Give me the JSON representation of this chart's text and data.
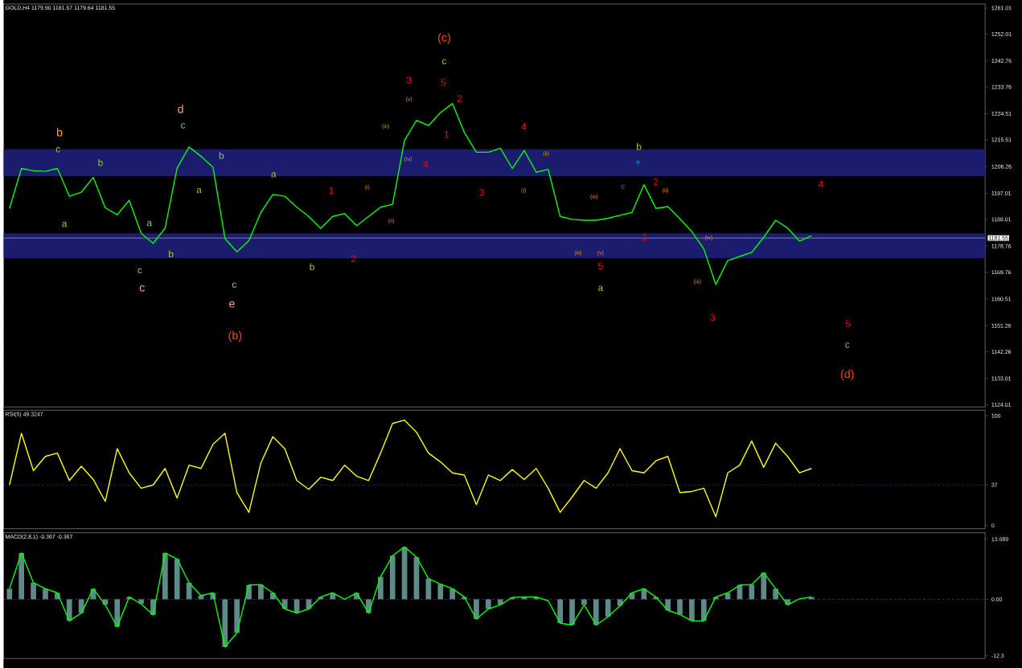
{
  "chart_data": [
    {
      "type": "line",
      "title": "GOLD,H4 1179.90 1181.57 1179.64 1181.55",
      "tick_labels": "y",
      "categories": [
        null,
        null,
        null,
        null,
        null,
        null,
        null,
        null,
        null,
        null,
        null,
        null,
        null,
        null,
        null,
        null,
        null,
        null,
        null,
        null,
        null,
        null,
        null,
        null,
        null,
        null,
        null,
        null,
        null,
        null,
        null,
        null,
        null,
        null,
        null,
        null,
        null,
        null,
        null,
        null,
        null,
        null,
        null,
        null,
        null,
        null,
        null,
        null,
        null,
        null,
        null,
        null,
        null,
        null,
        null,
        null,
        null,
        null,
        null,
        null,
        null,
        null,
        null,
        null,
        null,
        null,
        null,
        null,
        null,
        null,
        null,
        null,
        null,
        null,
        null,
        null,
        null,
        null,
        null,
        null,
        null,
        null
      ],
      "ylim": [
        1123.2,
        1262.4
      ],
      "yticks": [
        1124.01,
        1133.01,
        1142.26,
        1151.26,
        1160.51,
        1169.76,
        1178.76,
        1188.01,
        1197.01,
        1206.26,
        1215.51,
        1224.51,
        1233.76,
        1242.76,
        1252.01,
        1261.01
      ],
      "bands": [
        {
          "axis": "y",
          "from": 1202.9,
          "to": 1212.3,
          "color": "#1c1c6e"
        },
        {
          "axis": "y",
          "from": 1174.6,
          "to": 1183.2,
          "color": "#1c1c6e"
        }
      ],
      "ref_lines": [
        {
          "axis": "y",
          "value": 1181.55,
          "label": "1181.55",
          "color": "#c0c0c0"
        }
      ],
      "series": [
        {
          "color": "#00ff00",
          "values": [
            1191.8,
            1205.6,
            1204.8,
            1204.6,
            1205.6,
            1196,
            1197.4,
            1202.5,
            1192,
            1189.6,
            1194.6,
            1183.2,
            1179.7,
            1185,
            1205.7,
            1213,
            1209.8,
            1206,
            1181.4,
            1176.8,
            1180.7,
            1190.4,
            1196.6,
            1196,
            1192.2,
            1189,
            1184.9,
            1189,
            1190,
            1185.8,
            1189,
            1192.2,
            1193.2,
            1215.3,
            1222.2,
            1220.4,
            1224.9,
            1228,
            1218,
            1211.2,
            1211.2,
            1212.6,
            1205.6,
            1211.8,
            1204.3,
            1205.3,
            1189,
            1188,
            1187.7,
            1187.7,
            1188.4,
            1189.4,
            1190.4,
            1200,
            1191.8,
            1192.4,
            1188.2,
            1183.8,
            1177.8,
            1165.5,
            1173.8,
            1175.2,
            1176.6,
            1181.8,
            1187.7,
            1185,
            1180.5,
            1182.4,
            null,
            null,
            null,
            null,
            null,
            null,
            null,
            null,
            null,
            null,
            null,
            null,
            null,
            null
          ]
        }
      ],
      "annotations": [
        "(c)",
        "c",
        "3",
        "5",
        "2",
        "1",
        "4",
        "4",
        "3",
        "2",
        "1",
        "(b)",
        "e",
        "c",
        "c",
        "c",
        "d",
        "c",
        "b",
        "c",
        "b",
        "a",
        "a",
        "b",
        "b",
        "a",
        "a",
        "b",
        "(i)",
        "(ii)",
        "(iii)",
        "(iv)",
        "(v)",
        "5",
        "a",
        "b",
        "e",
        "c",
        "2",
        "1",
        "3",
        "4",
        "5",
        "c",
        "(d)",
        "(iii)",
        "(v)",
        "(iv)",
        "(ii)",
        "(i)",
        "(iii)",
        "(iv)",
        "(ii)"
      ]
    },
    {
      "type": "line",
      "title": "RSI(5) 49.3247",
      "tick_labels": "y",
      "categories": [
        null,
        null,
        null,
        null,
        null,
        null,
        null,
        null,
        null,
        null,
        null,
        null,
        null,
        null,
        null,
        null,
        null,
        null,
        null,
        null,
        null,
        null,
        null,
        null,
        null,
        null,
        null,
        null,
        null,
        null,
        null,
        null,
        null,
        null,
        null,
        null,
        null,
        null,
        null,
        null,
        null,
        null,
        null,
        null,
        null,
        null,
        null,
        null,
        null,
        null,
        null,
        null,
        null,
        null,
        null,
        null,
        null,
        null,
        null,
        null,
        null,
        null,
        null,
        null,
        null,
        null,
        null,
        null,
        null,
        null,
        null,
        null,
        null,
        null,
        null,
        null,
        null,
        null,
        null,
        null,
        null,
        null
      ],
      "ylim": [
        -2.9,
        105.1
      ],
      "yticks": [
        0,
        37,
        100
      ],
      "ref_lines": [
        {
          "axis": "y",
          "value": 37,
          "color": "#4040ff",
          "line_style": "dashed"
        }
      ],
      "series": [
        {
          "color": "#ffff00",
          "values": [
            37,
            84,
            50,
            63,
            66,
            41,
            54,
            42,
            22,
            70,
            48,
            34,
            37,
            52,
            25,
            55,
            52,
            74,
            84,
            30,
            12,
            57,
            81,
            70,
            41,
            33,
            44,
            41,
            55,
            45,
            41,
            66,
            93,
            96,
            85,
            66,
            58,
            48,
            46,
            19,
            46,
            41,
            51,
            42,
            52,
            34,
            12,
            26,
            41,
            34,
            48,
            70,
            50,
            48,
            59,
            63,
            30,
            31,
            34,
            8,
            48,
            55,
            77,
            53,
            75,
            63,
            48,
            52,
            null,
            null,
            null,
            null,
            null,
            null,
            null,
            null,
            null,
            null,
            null,
            null,
            null,
            null
          ]
        }
      ]
    },
    {
      "type": "line",
      "title": "MACD(2,8,1) -0.367 -0.367",
      "tick_labels": "y",
      "categories": [
        null,
        null,
        null,
        null,
        null,
        null,
        null,
        null,
        null,
        null,
        null,
        null,
        null,
        null,
        null,
        null,
        null,
        null,
        null,
        null,
        null,
        null,
        null,
        null,
        null,
        null,
        null,
        null,
        null,
        null,
        null,
        null,
        null,
        null,
        null,
        null,
        null,
        null,
        null,
        null,
        null,
        null,
        null,
        null,
        null,
        null,
        null,
        null,
        null,
        null,
        null,
        null,
        null,
        null,
        null,
        null,
        null,
        null,
        null,
        null,
        null,
        null,
        null,
        null,
        null,
        null,
        null,
        null,
        null,
        null,
        null,
        null,
        null,
        null,
        null,
        null,
        null,
        null,
        null,
        null,
        null,
        null
      ],
      "ylim": [
        -12.9,
        14.5
      ],
      "yticks": [
        13.089,
        {
          "value": 0,
          "label": "0.00"
        },
        -12.3
      ],
      "ref_lines": [
        {
          "axis": "y",
          "value": 0,
          "color": "#c000c0",
          "line_style": "dashed"
        }
      ],
      "series": [
        {
          "type": "bar",
          "color": "#5f8a8a",
          "values": [
            2.3,
            10.1,
            3.6,
            2.3,
            1.4,
            -4.7,
            -3.0,
            2.3,
            -1.2,
            -6,
            0.5,
            -1.0,
            -3.4,
            10.1,
            8.8,
            3.6,
            0.8,
            1.4,
            -10.4,
            -7.3,
            3.1,
            3.2,
            1.4,
            -2.1,
            -3.0,
            -2.1,
            0.5,
            1.4,
            0.0,
            1.4,
            -3.0,
            4.9,
            9.5,
            11.4,
            9.2,
            4.5,
            3.3,
            2.3,
            0.5,
            -4.3,
            -2.1,
            -1.2,
            0.4,
            0.5,
            0.5,
            null,
            -5.2,
            -5.6,
            -1.2,
            -5.6,
            -3.8,
            -1.4,
            1.4,
            2.3,
            0.5,
            -2.4,
            -3.3,
            -4.7,
            -4.7,
            0.5,
            1.4,
            3.1,
            3.2,
            5.8,
            2.3,
            -1.2,
            null,
            0.5,
            null,
            null,
            null,
            null,
            null,
            null,
            null,
            null,
            null,
            null,
            null,
            null,
            null,
            null
          ]
        },
        {
          "type": "line",
          "color": "#00ff00",
          "values": [
            2.3,
            10.1,
            3.6,
            2.3,
            1.4,
            -4.7,
            -3.0,
            2.3,
            -1.2,
            -6,
            0.5,
            -1.0,
            -3.4,
            10.1,
            8.8,
            3.6,
            0.8,
            1.4,
            -10.4,
            -7.3,
            3.1,
            3.2,
            1.4,
            -2.1,
            -3.0,
            -2.1,
            0.5,
            1.4,
            0.0,
            1.4,
            -3.0,
            4.9,
            9.5,
            11.4,
            9.2,
            4.5,
            3.3,
            2.3,
            0.5,
            -4.3,
            -2.1,
            -1.2,
            0.4,
            0.5,
            0.5,
            -0.3,
            -5.2,
            -5.6,
            -1.2,
            -5.6,
            -3.8,
            -1.4,
            1.4,
            2.3,
            0.5,
            -2.4,
            -3.3,
            -4.7,
            -4.7,
            0.5,
            1.4,
            3.1,
            3.2,
            5.8,
            2.3,
            -1.2,
            0.1,
            0.5,
            null,
            null,
            null,
            null,
            null,
            null,
            null,
            null,
            null,
            null,
            null,
            null,
            null,
            null
          ]
        }
      ]
    }
  ]
}
